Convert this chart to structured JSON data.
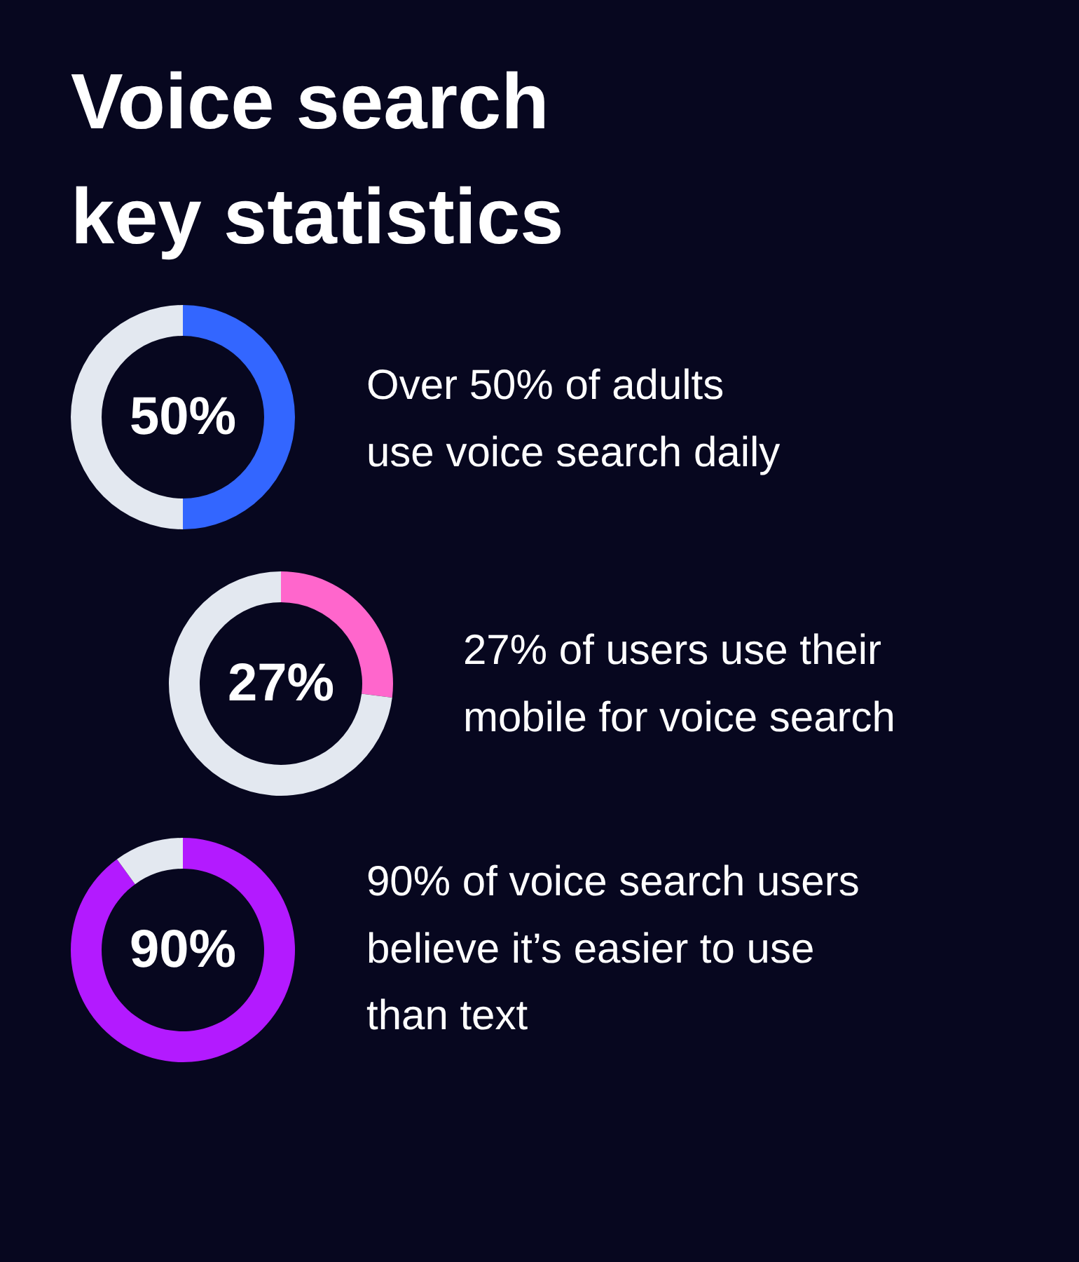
{
  "chart_data": [
    {
      "type": "donut",
      "title": "Voice search\nkey statistics",
      "categories": [
        null,
        null
      ],
      "values": [
        50,
        50
      ],
      "colors": [
        "#3366ff",
        "#e3e8f0"
      ],
      "annotations": [
        "50%",
        "Over 50% of adults\nuse voice search daily"
      ]
    },
    {
      "type": "donut",
      "categories": [
        null,
        null
      ],
      "values": [
        27,
        73
      ],
      "colors": [
        "#ff66cc",
        "#e3e8f0"
      ],
      "annotations": [
        "27%",
        "27% of users use their\nmobile for voice search"
      ]
    },
    {
      "type": "donut",
      "categories": [
        null,
        null
      ],
      "values": [
        90,
        10
      ],
      "colors": [
        "#b31aff",
        "#e3e8f0"
      ],
      "annotations": [
        "90%",
        "90% of voice search users\nbelieve it’s easier to use\nthan text"
      ]
    }
  ]
}
